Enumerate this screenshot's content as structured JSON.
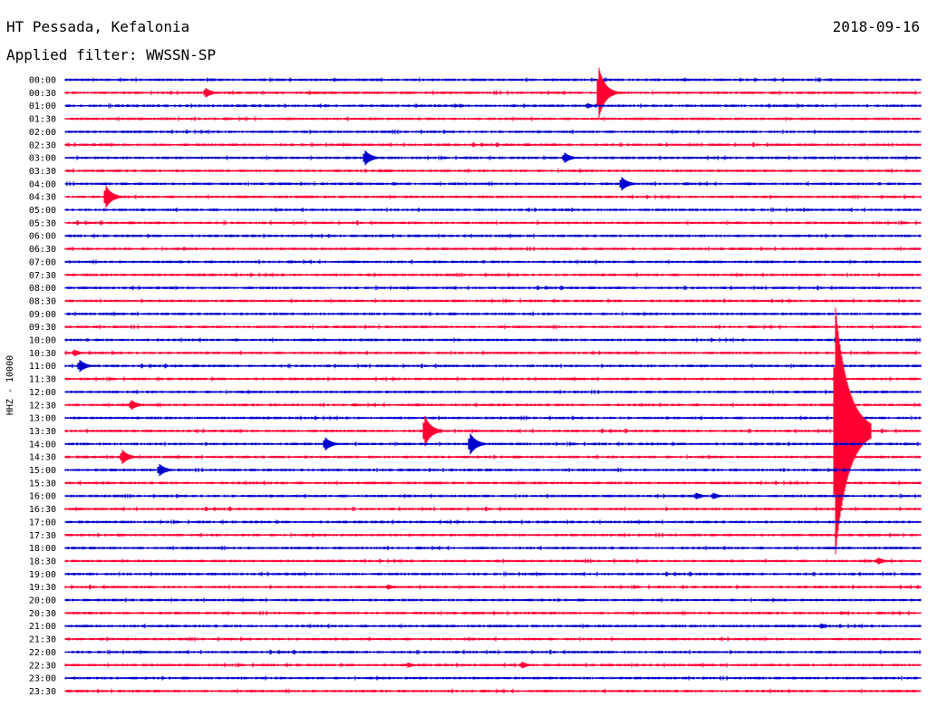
{
  "chart_data": {
    "type": "line",
    "title": "HT Pessada, Kefalonia",
    "subtitle": "Applied filter: WWSSN-SP",
    "date": "2018-09-16",
    "ylabel": "HHZ - 10000",
    "colors": {
      "even": "#0000cc",
      "odd": "#ff0033"
    },
    "rows": [
      "00:00",
      "00:30",
      "01:00",
      "01:30",
      "02:00",
      "02:30",
      "03:00",
      "03:30",
      "04:00",
      "04:30",
      "05:00",
      "05:30",
      "06:00",
      "06:30",
      "07:00",
      "07:30",
      "08:00",
      "08:30",
      "09:00",
      "09:30",
      "10:00",
      "10:30",
      "11:00",
      "11:30",
      "12:00",
      "12:30",
      "13:00",
      "13:30",
      "14:00",
      "14:30",
      "15:00",
      "15:30",
      "16:00",
      "16:30",
      "17:00",
      "17:30",
      "18:00",
      "18:30",
      "19:00",
      "19:30",
      "20:00",
      "20:30",
      "21:00",
      "21:30",
      "22:00",
      "22:30",
      "23:00",
      "23:30"
    ],
    "x_range_minutes": [
      0,
      30
    ],
    "events": [
      {
        "row": 1,
        "minute": 4.9,
        "amplitude": 6
      },
      {
        "row": 1,
        "minute": 18.7,
        "amplitude": 30
      },
      {
        "row": 2,
        "minute": 18.3,
        "amplitude": 3
      },
      {
        "row": 6,
        "minute": 10.5,
        "amplitude": 9
      },
      {
        "row": 6,
        "minute": 17.5,
        "amplitude": 6
      },
      {
        "row": 7,
        "minute": 11.0,
        "amplitude": 2
      },
      {
        "row": 8,
        "minute": 11.5,
        "amplitude": 2
      },
      {
        "row": 8,
        "minute": 19.5,
        "amplitude": 8
      },
      {
        "row": 9,
        "minute": 1.4,
        "amplitude": 14
      },
      {
        "row": 21,
        "minute": 0.3,
        "amplitude": 4
      },
      {
        "row": 22,
        "minute": 0.5,
        "amplitude": 7
      },
      {
        "row": 25,
        "minute": 2.3,
        "amplitude": 6
      },
      {
        "row": 27,
        "minute": 12.6,
        "amplitude": 18
      },
      {
        "row": 27,
        "minute": 27.0,
        "amplitude": 140
      },
      {
        "row": 28,
        "minute": 9.1,
        "amplitude": 8
      },
      {
        "row": 28,
        "minute": 14.2,
        "amplitude": 12
      },
      {
        "row": 29,
        "minute": 2.0,
        "amplitude": 8
      },
      {
        "row": 30,
        "minute": 3.3,
        "amplitude": 7
      },
      {
        "row": 32,
        "minute": 22.1,
        "amplitude": 4
      },
      {
        "row": 32,
        "minute": 22.7,
        "amplitude": 4
      },
      {
        "row": 37,
        "minute": 28.5,
        "amplitude": 4
      },
      {
        "row": 39,
        "minute": 11.3,
        "amplitude": 3
      },
      {
        "row": 41,
        "minute": 27.2,
        "amplitude": 2
      },
      {
        "row": 42,
        "minute": 26.5,
        "amplitude": 3
      },
      {
        "row": 45,
        "minute": 12.0,
        "amplitude": 3
      },
      {
        "row": 45,
        "minute": 16.0,
        "amplitude": 4
      }
    ]
  }
}
